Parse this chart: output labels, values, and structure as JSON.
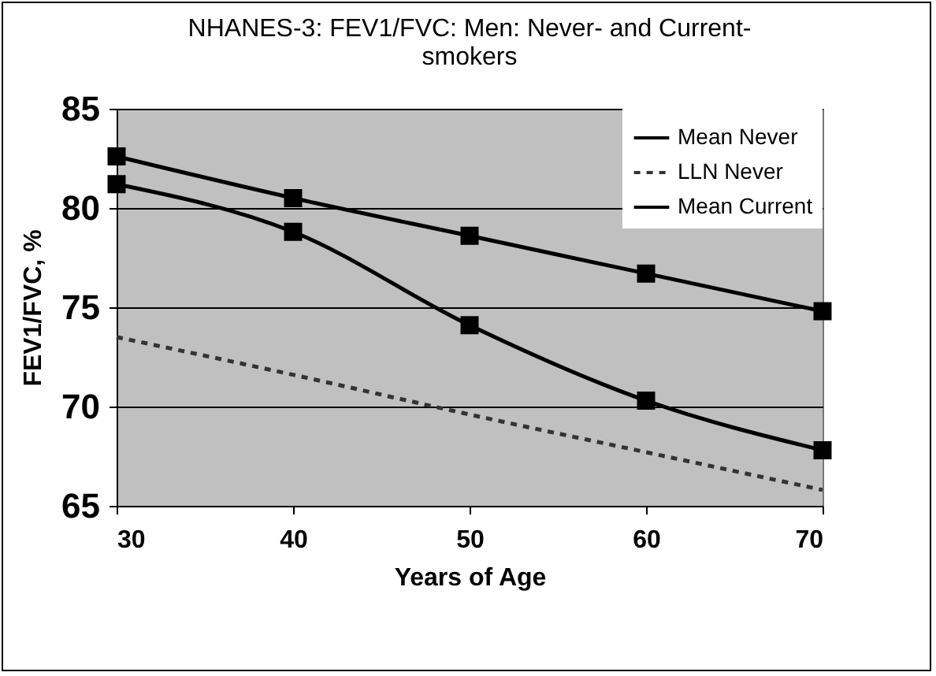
{
  "chart_data": {
    "type": "line",
    "title": "NHANES-3: FEV1/FVC: Men: Never- and Current-smokers",
    "xlabel": "Years of Age",
    "ylabel": "FEV1/FVC, %",
    "x": [
      30,
      40,
      50,
      60,
      70
    ],
    "series": [
      {
        "name": "Mean Never",
        "color": "#000000",
        "marker": "square",
        "line_style": "solid",
        "values": [
          82.6,
          80.5,
          78.6,
          76.7,
          74.8
        ]
      },
      {
        "name": "LLN Never",
        "color": "#333333",
        "marker": "none",
        "line_style": "dashed",
        "values": [
          73.5,
          71.6,
          69.6,
          67.7,
          65.8
        ]
      },
      {
        "name": "Mean Current",
        "color": "#000000",
        "marker": "square",
        "line_style": "solid",
        "values": [
          81.2,
          78.8,
          74.1,
          70.3,
          67.8
        ]
      }
    ],
    "xlim": [
      30,
      70
    ],
    "xticks": [
      30,
      40,
      50,
      60,
      70
    ],
    "ylim": [
      65,
      85
    ],
    "yticks": [
      65,
      70,
      75,
      80,
      85
    ],
    "grid": "y",
    "legend": "top right"
  }
}
